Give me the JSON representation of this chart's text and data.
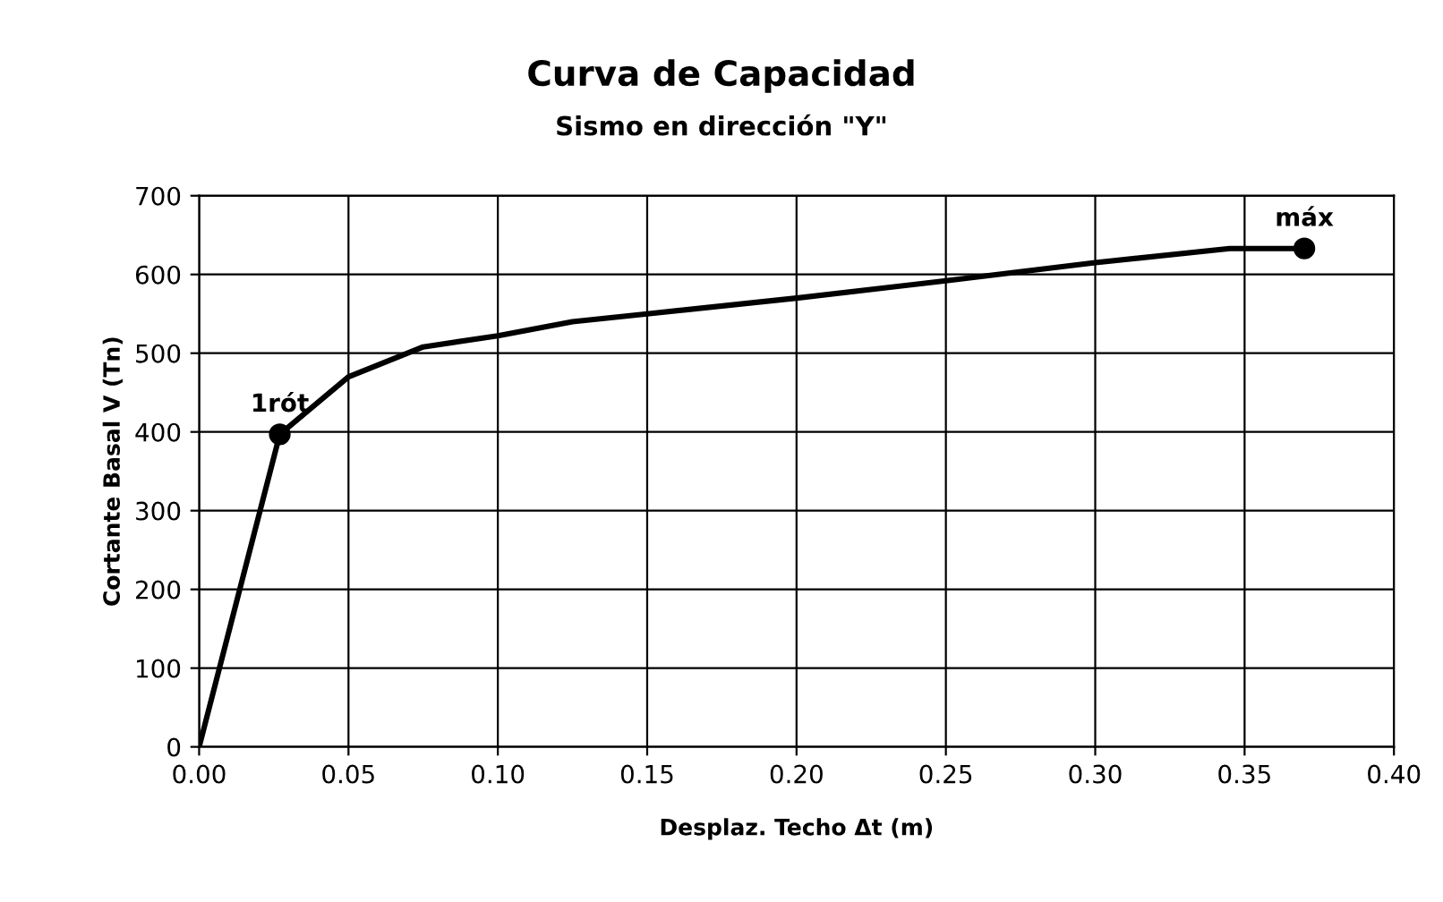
{
  "chart_data": {
    "type": "line",
    "title": "Curva de Capacidad",
    "subtitle": "Sismo en dirección \"Y\"",
    "xlabel": "Desplaz. Techo Δt (m)",
    "ylabel": "Cortante Basal V (Tn)",
    "series": [
      {
        "color": "#000000",
        "marker": "none",
        "x": [
          0,
          0.027,
          0.05,
          0.075,
          0.1,
          0.125,
          0.15,
          0.2,
          0.25,
          0.3,
          0.345,
          0.37
        ],
        "values": [
          0,
          397,
          470,
          508,
          522,
          540,
          550,
          570,
          592,
          615,
          633,
          633
        ]
      },
      {
        "type": "scatter",
        "color": "#000000",
        "marker": "circle",
        "x": [
          0.027,
          0.37
        ],
        "values": [
          397,
          633
        ]
      }
    ],
    "annotations": [
      {
        "text": "1rót",
        "x": 0.027,
        "y": 397
      },
      {
        "text": "máx",
        "x": 0.37,
        "y": 633
      }
    ],
    "xlim": [
      0,
      0.4
    ],
    "xticks": [
      {
        "value": 0,
        "label": "0.00"
      },
      {
        "value": 0.05,
        "label": "0.05"
      },
      {
        "value": 0.1,
        "label": "0.10"
      },
      {
        "value": 0.15,
        "label": "0.15"
      },
      {
        "value": 0.2,
        "label": "0.20"
      },
      {
        "value": 0.25,
        "label": "0.25"
      },
      {
        "value": 0.3,
        "label": "0.30"
      },
      {
        "value": 0.35,
        "label": "0.35"
      },
      {
        "value": 0.4,
        "label": "0.40"
      }
    ],
    "ylim": [
      0,
      700
    ],
    "yticks": [
      0,
      100,
      200,
      300,
      400,
      500,
      600,
      700
    ],
    "grid": true,
    "legend": false
  }
}
